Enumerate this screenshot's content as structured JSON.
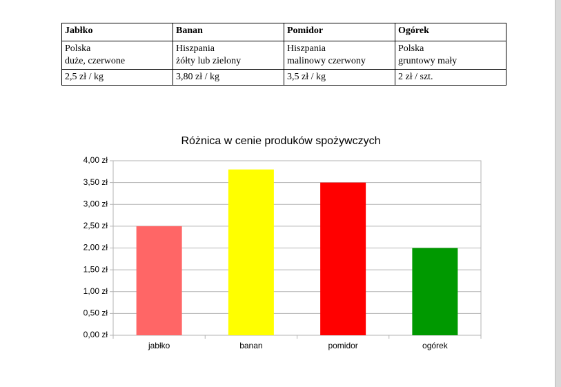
{
  "table": {
    "rows": [
      [
        [
          "Jabłko"
        ],
        [
          "Banan"
        ],
        [
          "Pomidor"
        ],
        [
          "Ogórek"
        ]
      ],
      [
        [
          "Polska",
          "duże, czerwone"
        ],
        [
          "Hiszpania",
          "żółty lub zielony"
        ],
        [
          "Hiszpania",
          "malinowy czerwony"
        ],
        [
          "Polska",
          "gruntowy mały"
        ]
      ],
      [
        [
          "2,5 zł / kg"
        ],
        [
          "3,80 zł / kg"
        ],
        [
          "3,5 zł / kg"
        ],
        [
          "2 zł / szt."
        ]
      ]
    ]
  },
  "chart_data": {
    "type": "bar",
    "title": "Różnica w cenie produków spożywczych",
    "categories": [
      "jabłko",
      "banan",
      "pomidor",
      "ogórek"
    ],
    "values": [
      2.5,
      3.8,
      3.5,
      2
    ],
    "colors": [
      "#ff6666",
      "#ffff00",
      "#ff0000",
      "#009900"
    ],
    "ylim": [
      0,
      4
    ],
    "yticks": [
      {
        "value": 0,
        "label": "0,00 zł"
      },
      {
        "value": 0.5,
        "label": "0,50 zł"
      },
      {
        "value": 1,
        "label": "1,00 zł"
      },
      {
        "value": 1.5,
        "label": "1,50 zł"
      },
      {
        "value": 2,
        "label": "2,00 zł"
      },
      {
        "value": 2.5,
        "label": "2,50 zł"
      },
      {
        "value": 3,
        "label": "3,00 zł"
      },
      {
        "value": 3.5,
        "label": "3,50 zł"
      },
      {
        "value": 4,
        "label": "4,00 zł"
      }
    ],
    "grid": true
  }
}
